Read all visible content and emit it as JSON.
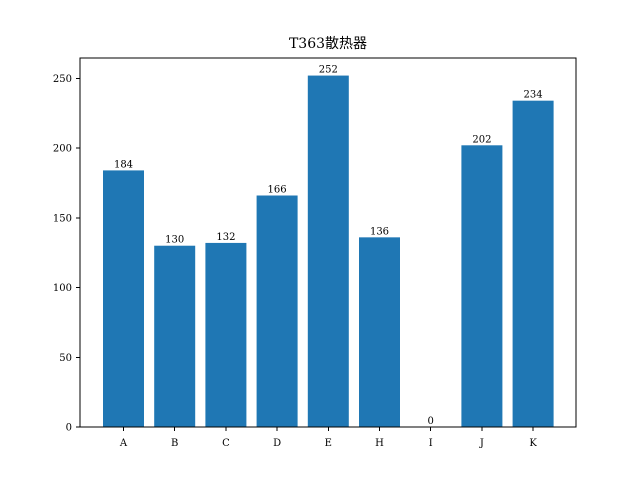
{
  "chart_data": {
    "type": "bar",
    "title": "T363散热器",
    "xlabel": "",
    "ylabel": "",
    "categories": [
      "A",
      "B",
      "C",
      "D",
      "E",
      "H",
      "I",
      "J",
      "K"
    ],
    "values": [
      184,
      130,
      132,
      166,
      252,
      136,
      0,
      202,
      234
    ],
    "ylim": [
      0,
      264.6
    ],
    "yticks": [
      0,
      50,
      100,
      150,
      200,
      250
    ],
    "grid": false,
    "bar_color": "#1f77b4",
    "data_labels": true
  }
}
